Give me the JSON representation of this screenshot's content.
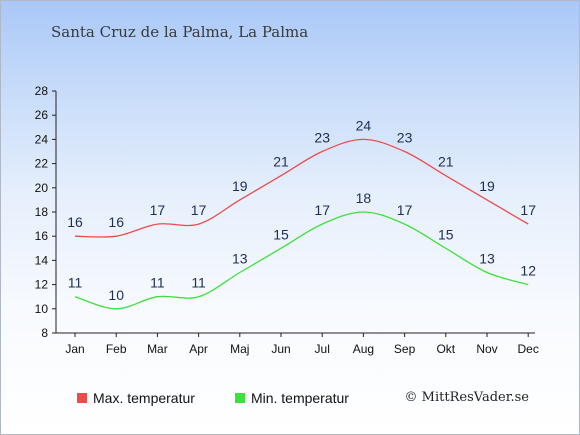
{
  "title": "Santa Cruz de la Palma, La Palma",
  "credit": "© MittResVader.se",
  "chart_data": {
    "type": "line",
    "categories": [
      "Jan",
      "Feb",
      "Mar",
      "Apr",
      "Maj",
      "Jun",
      "Jul",
      "Aug",
      "Sep",
      "Okt",
      "Nov",
      "Dec"
    ],
    "series": [
      {
        "name": "Max. temperatur",
        "color": "#ef4a4a",
        "values": [
          16,
          16,
          17,
          17,
          19,
          21,
          23,
          24,
          23,
          21,
          19,
          17
        ]
      },
      {
        "name": "Min. temperatur",
        "color": "#3ee03e",
        "values": [
          11,
          10,
          11,
          11,
          13,
          15,
          17,
          18,
          17,
          15,
          13,
          12
        ]
      }
    ],
    "yticks": [
      8,
      10,
      12,
      14,
      16,
      18,
      20,
      22,
      24,
      26,
      28
    ],
    "ylim": [
      8,
      28
    ],
    "grid": false,
    "legend": "bottom-left"
  }
}
